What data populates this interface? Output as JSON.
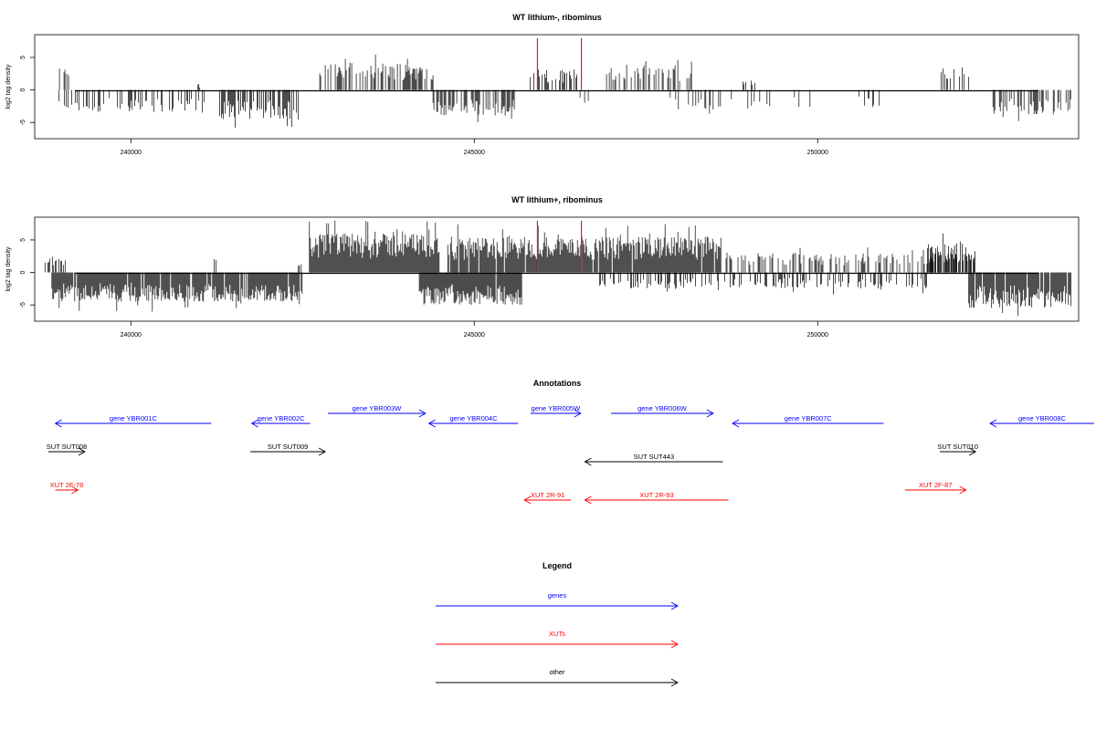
{
  "chart_data": [
    {
      "type": "bar",
      "title": "WT lithium-, ribominus",
      "ylabel": "log2 tag density",
      "xlabel": "",
      "xlim": [
        238600,
        253800
      ],
      "ylim": [
        -7.5,
        8.5
      ],
      "xticks": [
        240000,
        245000,
        250000
      ],
      "xtick_labels": [
        "240000",
        "245000",
        "250000"
      ],
      "yticks": [
        -5,
        0,
        5
      ],
      "ytick_labels": [
        "-5",
        "0",
        "5"
      ],
      "density": "sparse",
      "markers": [
        {
          "x": 245920,
          "color": "#e02020"
        },
        {
          "x": 246560,
          "color": "#e02020"
        }
      ],
      "regions": [
        {
          "start": 238880,
          "end": 239100,
          "sign": 1,
          "amp": 3.5,
          "density": 0.3
        },
        {
          "start": 238900,
          "end": 241200,
          "sign": -1,
          "amp": 3.5,
          "density": 0.35
        },
        {
          "start": 240950,
          "end": 241050,
          "sign": 1,
          "amp": 1,
          "density": 0.4
        },
        {
          "start": 241200,
          "end": 242450,
          "sign": -1,
          "amp": 4.5,
          "density": 0.6
        },
        {
          "start": 242750,
          "end": 244400,
          "sign": 1,
          "amp": 4.2,
          "density": 0.55
        },
        {
          "start": 244400,
          "end": 245600,
          "sign": -1,
          "amp": 4,
          "density": 0.6
        },
        {
          "start": 245800,
          "end": 246500,
          "sign": 1,
          "amp": 3.2,
          "density": 0.45
        },
        {
          "start": 246500,
          "end": 246800,
          "sign": -1,
          "amp": 2.5,
          "density": 0.2
        },
        {
          "start": 246900,
          "end": 248200,
          "sign": 1,
          "amp": 3.5,
          "density": 0.35
        },
        {
          "start": 247800,
          "end": 249900,
          "sign": -1,
          "amp": 3,
          "density": 0.22
        },
        {
          "start": 248900,
          "end": 249100,
          "sign": 1,
          "amp": 1.6,
          "density": 0.3
        },
        {
          "start": 250600,
          "end": 250900,
          "sign": -1,
          "amp": 2.8,
          "density": 0.2
        },
        {
          "start": 251800,
          "end": 252200,
          "sign": 1,
          "amp": 3.5,
          "density": 0.4
        },
        {
          "start": 252500,
          "end": 253700,
          "sign": -1,
          "amp": 3.8,
          "density": 0.45
        }
      ]
    },
    {
      "type": "bar",
      "title": "WT lithium+, ribominus",
      "ylabel": "log2 tag density",
      "xlabel": "",
      "xlim": [
        238600,
        253800
      ],
      "ylim": [
        -7.5,
        8.5
      ],
      "xticks": [
        240000,
        245000,
        250000
      ],
      "xtick_labels": [
        "240000",
        "245000",
        "250000"
      ],
      "yticks": [
        -5,
        0,
        5
      ],
      "ytick_labels": [
        "-5",
        "0",
        "5"
      ],
      "density": "dense",
      "markers": [
        {
          "x": 245920,
          "color": "#e02020"
        },
        {
          "x": 246560,
          "color": "#e02020"
        }
      ],
      "regions": [
        {
          "start": 238750,
          "end": 239050,
          "sign": 1,
          "amp": 2.5,
          "density": 0.6
        },
        {
          "start": 238850,
          "end": 242500,
          "sign": -1,
          "amp": 4.5,
          "density": 0.95
        },
        {
          "start": 241200,
          "end": 241300,
          "sign": 1,
          "amp": 2.2,
          "density": 0.4
        },
        {
          "start": 242400,
          "end": 242500,
          "sign": 1,
          "amp": 1.5,
          "density": 0.4
        },
        {
          "start": 242600,
          "end": 244500,
          "sign": 1,
          "amp": 6,
          "density": 1.0
        },
        {
          "start": 244200,
          "end": 245700,
          "sign": -1,
          "amp": 5,
          "density": 0.95
        },
        {
          "start": 244600,
          "end": 248600,
          "sign": 1,
          "amp": 5.5,
          "density": 0.95
        },
        {
          "start": 246800,
          "end": 251600,
          "sign": -1,
          "amp": 2.5,
          "density": 0.35
        },
        {
          "start": 248600,
          "end": 252300,
          "sign": 1,
          "amp": 3,
          "density": 0.35
        },
        {
          "start": 251600,
          "end": 252300,
          "sign": 1,
          "amp": 4.5,
          "density": 0.6
        },
        {
          "start": 252200,
          "end": 253700,
          "sign": -1,
          "amp": 5.5,
          "density": 0.95
        }
      ]
    },
    {
      "type": "table",
      "title": "Annotations",
      "features": [
        {
          "label": "gene YBR001C",
          "kind": "genes",
          "start": 238900,
          "end": 241170,
          "strand": "-",
          "row": 1
        },
        {
          "label": "gene YBR002C",
          "kind": "genes",
          "start": 241760,
          "end": 242610,
          "strand": "-",
          "row": 1
        },
        {
          "label": "gene YBR003W",
          "kind": "genes",
          "start": 242870,
          "end": 244290,
          "strand": "+",
          "row": 0
        },
        {
          "label": "gene YBR004C",
          "kind": "genes",
          "start": 244340,
          "end": 245640,
          "strand": "-",
          "row": 1
        },
        {
          "label": "gene YBR005W",
          "kind": "genes",
          "start": 245820,
          "end": 246550,
          "strand": "+",
          "row": 0
        },
        {
          "label": "gene YBR006W",
          "kind": "genes",
          "start": 246990,
          "end": 248480,
          "strand": "+",
          "row": 0
        },
        {
          "label": "gene YBR007C",
          "kind": "genes",
          "start": 248760,
          "end": 250960,
          "strand": "-",
          "row": 1
        },
        {
          "label": "gene YBR008C",
          "kind": "genes",
          "start": 252510,
          "end": 254170,
          "strand": "-",
          "row": 1
        },
        {
          "label": "SUT SUT008",
          "kind": "other",
          "start": 238800,
          "end": 239330,
          "strand": "+",
          "row": 2
        },
        {
          "label": "SUT SUT009",
          "kind": "other",
          "start": 241740,
          "end": 242830,
          "strand": "+",
          "row": 2
        },
        {
          "label": "SUT SUT443",
          "kind": "other",
          "start": 246610,
          "end": 248620,
          "strand": "-",
          "row": 3
        },
        {
          "label": "SUT SUT010",
          "kind": "other",
          "start": 251780,
          "end": 252300,
          "strand": "+",
          "row": 2
        },
        {
          "label": "XUT 2F-78",
          "kind": "XUTs",
          "start": 238900,
          "end": 239230,
          "strand": "+",
          "row": 4
        },
        {
          "label": "XUT 2R-91",
          "kind": "XUTs",
          "start": 245730,
          "end": 246410,
          "strand": "-",
          "row": 5
        },
        {
          "label": "XUT 2R-93",
          "kind": "XUTs",
          "start": 246610,
          "end": 248700,
          "strand": "-",
          "row": 5
        },
        {
          "label": "XUT 2F-87",
          "kind": "XUTs",
          "start": 251270,
          "end": 252160,
          "strand": "+",
          "row": 4
        }
      ]
    }
  ],
  "legend": {
    "title": "Legend",
    "items": [
      {
        "label": "genes",
        "color": "#0000ff"
      },
      {
        "label": "XUTs",
        "color": "#ff0000"
      },
      {
        "label": "other",
        "color": "#000000"
      }
    ]
  },
  "colors": {
    "genes": "#0000ff",
    "XUTs": "#ff0000",
    "other": "#000000",
    "marker": "#e02020"
  }
}
